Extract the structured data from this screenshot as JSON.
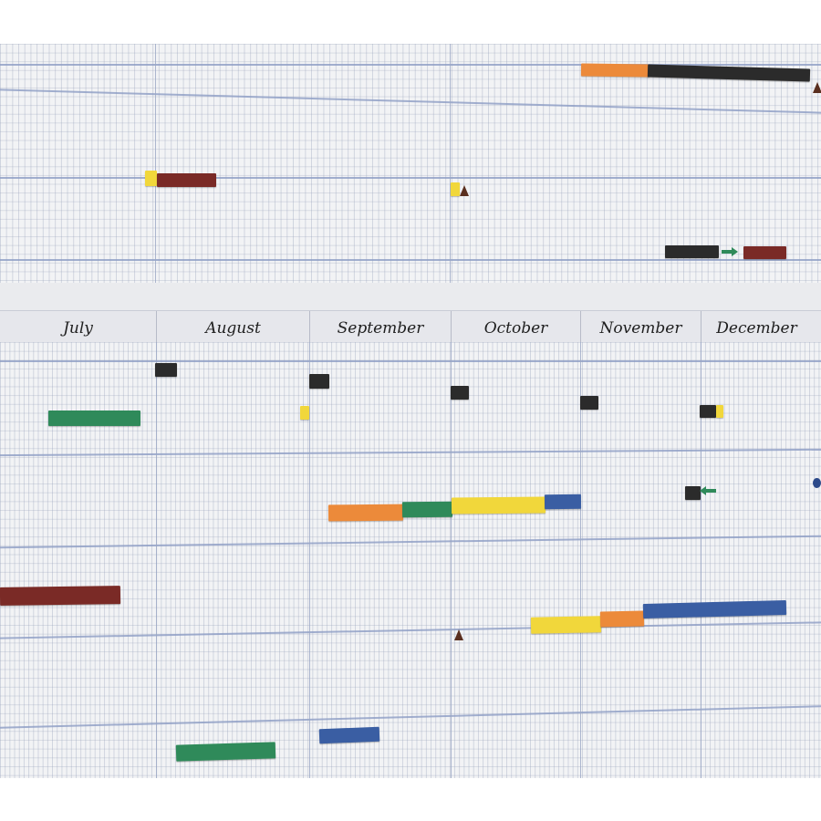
{
  "months": [
    "July",
    "August",
    "September",
    "October",
    "November",
    "December"
  ],
  "colors": {
    "orange": "#ec8a3a",
    "black": "#2b2b2b",
    "maroon": "#7a2a26",
    "yellow": "#f1d73b",
    "green": "#2f8a5a",
    "blue": "#3a5ea3",
    "brown_marker": "#5a2f1f",
    "navy_dot": "#2d4a8a"
  },
  "icons": {
    "triangle": "triangle-marker-icon",
    "arrow_right": "arrow-right-icon",
    "arrow_left": "arrow-left-icon",
    "dot": "dot-marker-icon"
  }
}
